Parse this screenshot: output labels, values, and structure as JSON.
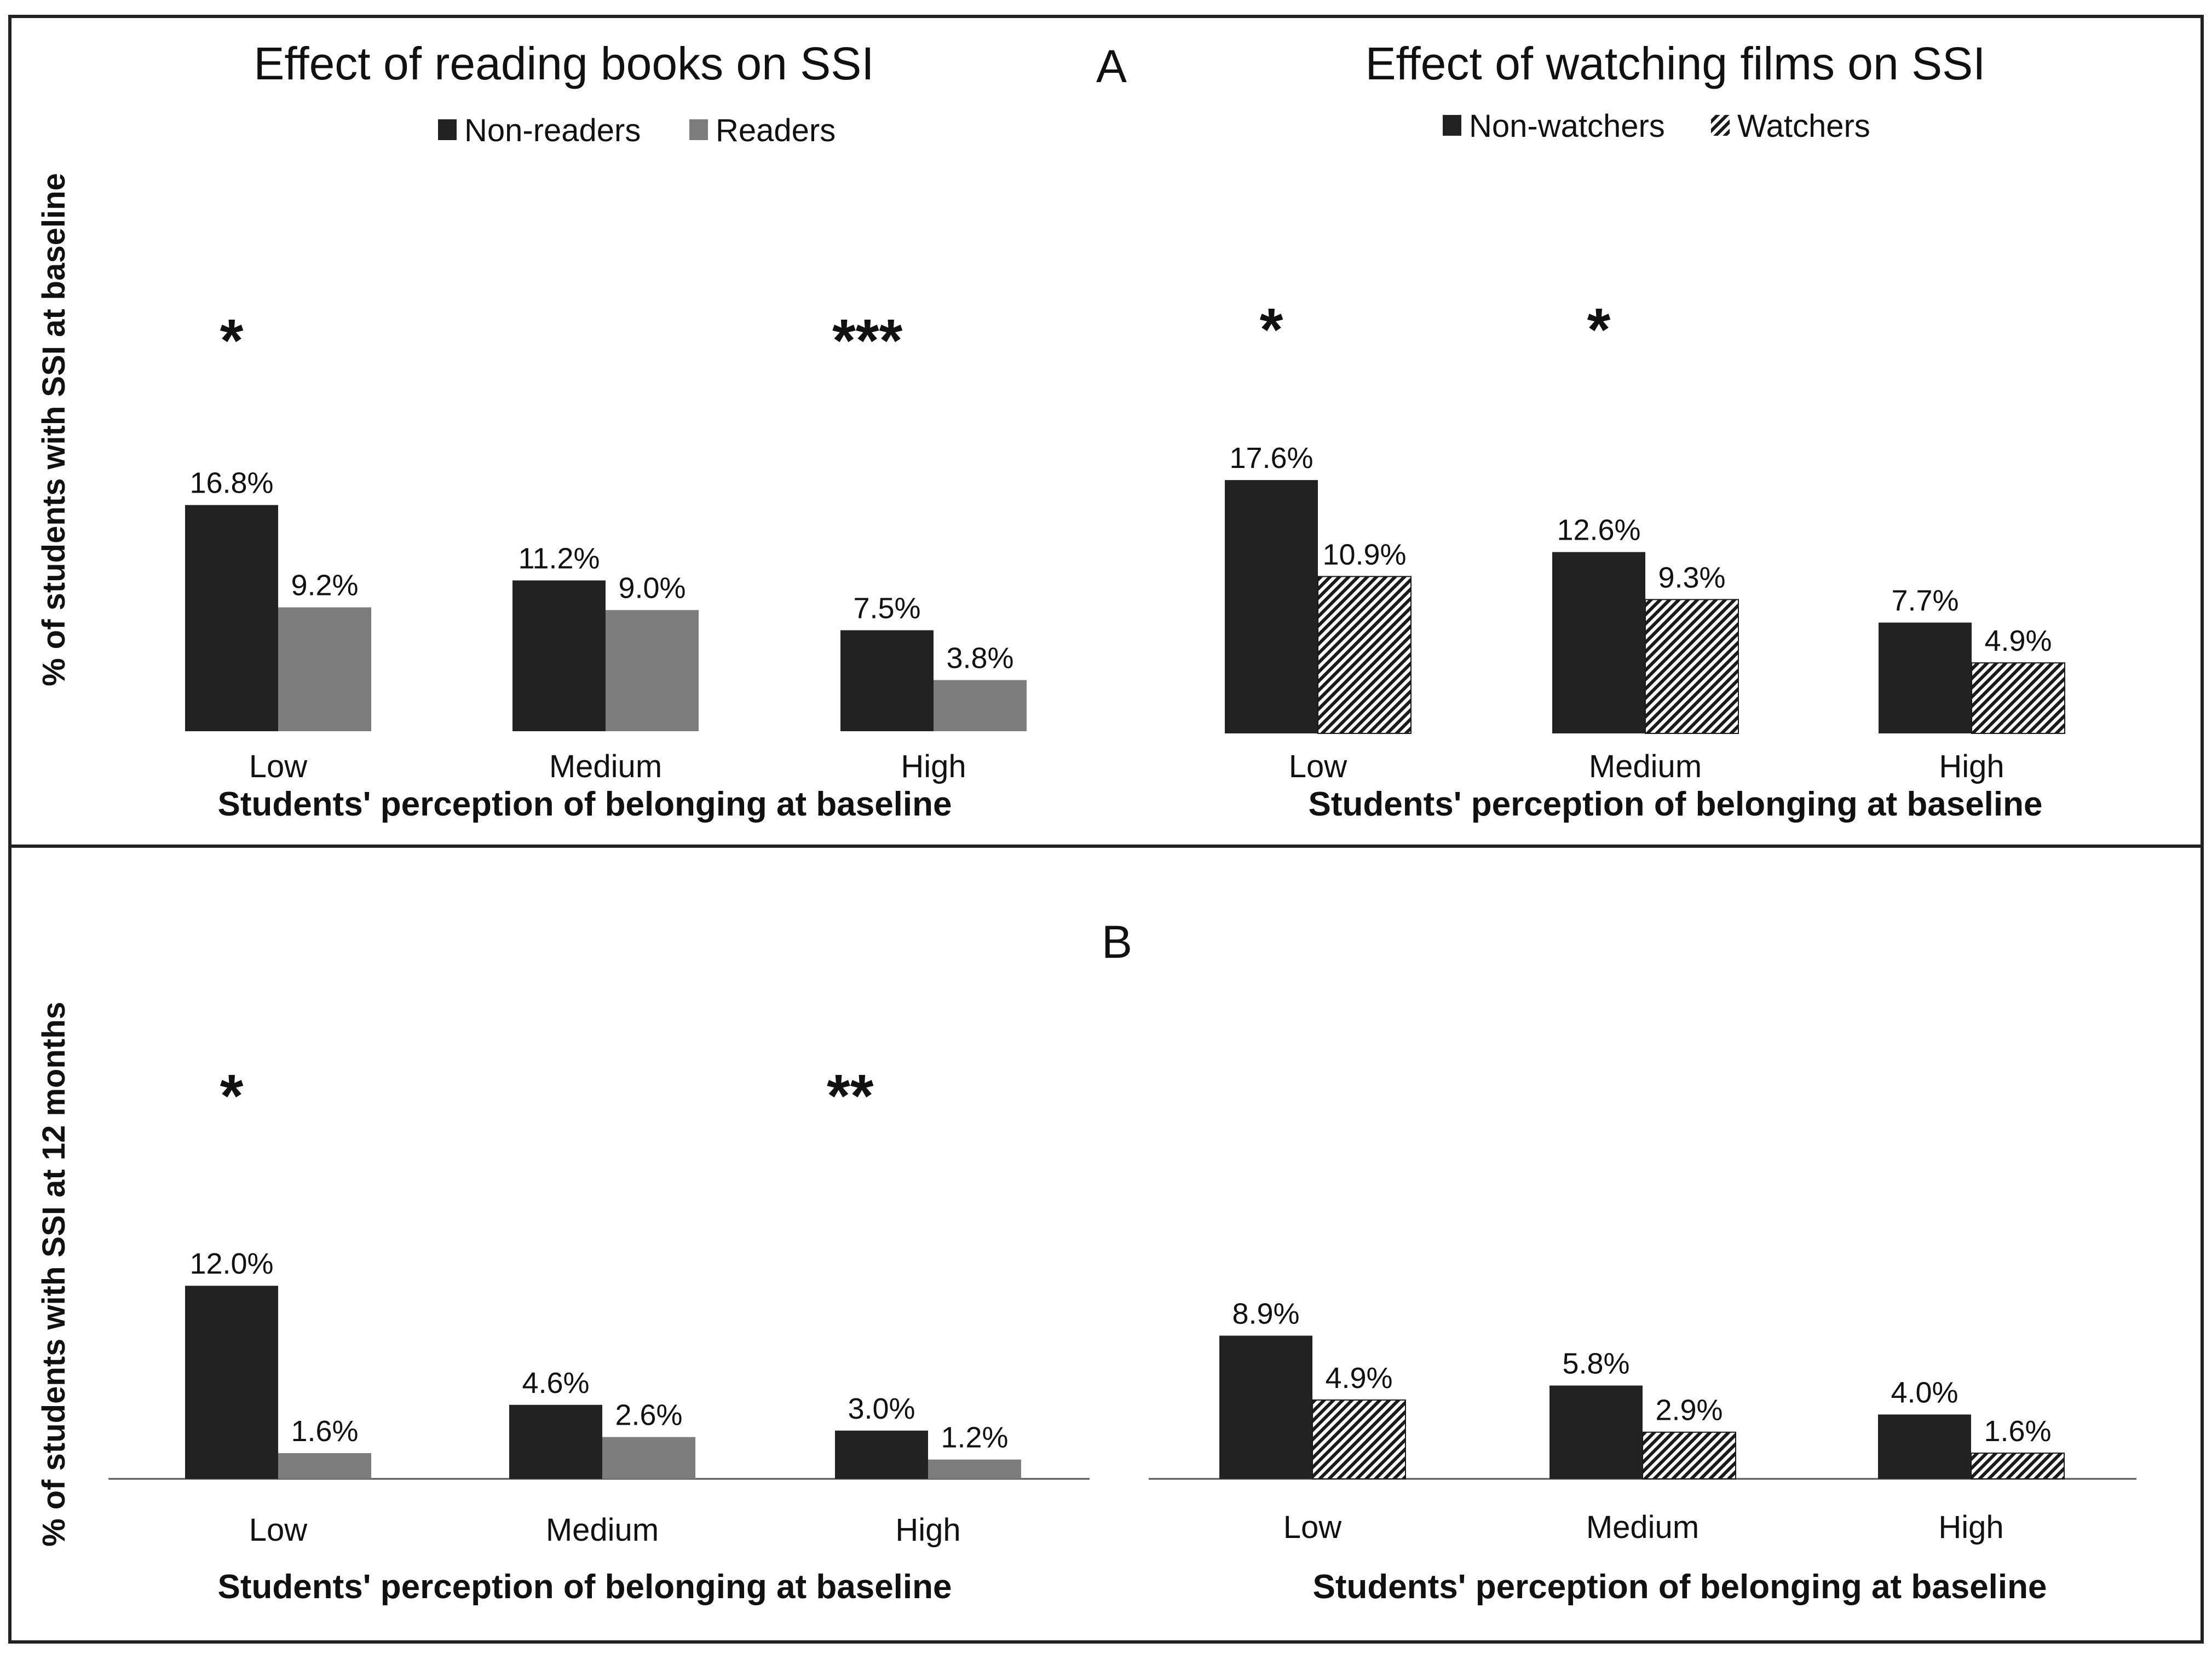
{
  "panels": {
    "a": {
      "label": "A"
    },
    "b": {
      "label": "B"
    }
  },
  "ylabels": {
    "a": "% of students with SSI at baseline",
    "b": "% of students with SSI at 12 months"
  },
  "colors": {
    "dark": "#222222",
    "grey": "#7d7d7d",
    "hatch_line": "#1a1a1a",
    "hatch_bg": "#ffffff",
    "axis": "#555555",
    "border": "#222222"
  },
  "chart_data": [
    {
      "id": "a-books",
      "panel": "A",
      "type": "bar",
      "title": "Effect of reading books on SSI",
      "xlabel": "Students' perception of belonging at baseline",
      "ylabel": "% of students with SSI at baseline",
      "categories": [
        "Low",
        "Medium",
        "High"
      ],
      "series": [
        {
          "name": "Non-readers",
          "style": "dark",
          "values": [
            16.8,
            11.2,
            7.5
          ],
          "labels": [
            "16.8%",
            "11.2%",
            "7.5%"
          ]
        },
        {
          "name": "Readers",
          "style": "grey",
          "values": [
            9.2,
            9.0,
            3.8
          ],
          "labels": [
            "9.2%",
            "9.0%",
            "3.8%"
          ]
        }
      ],
      "significance": [
        "*",
        "",
        "***"
      ],
      "legend": "top-center"
    },
    {
      "id": "a-films",
      "panel": "A",
      "type": "bar",
      "title": "Effect of watching films on SSI",
      "xlabel": "Students' perception of belonging at baseline",
      "ylabel": "% of students with SSI at baseline",
      "categories": [
        "Low",
        "Medium",
        "High"
      ],
      "series": [
        {
          "name": "Non-watchers",
          "style": "dark",
          "values": [
            17.6,
            12.6,
            7.7
          ],
          "labels": [
            "17.6%",
            "12.6%",
            "7.7%"
          ]
        },
        {
          "name": "Watchers",
          "style": "hatch",
          "values": [
            10.9,
            9.3,
            4.9
          ],
          "labels": [
            "10.9%",
            "9.3%",
            "4.9%"
          ]
        }
      ],
      "significance": [
        "*",
        "*",
        ""
      ],
      "legend": "top-center"
    },
    {
      "id": "b-books",
      "panel": "B",
      "type": "bar",
      "title": "",
      "xlabel": "Students' perception of belonging at baseline",
      "ylabel": "% of students with SSI at 12 months",
      "categories": [
        "Low",
        "Medium",
        "High"
      ],
      "series": [
        {
          "name": "Non-readers",
          "style": "dark",
          "values": [
            12.0,
            4.6,
            3.0
          ],
          "labels": [
            "12.0%",
            "4.6%",
            "3.0%"
          ]
        },
        {
          "name": "Readers",
          "style": "grey",
          "values": [
            1.6,
            2.6,
            1.2
          ],
          "labels": [
            "1.6%",
            "2.6%",
            "1.2%"
          ]
        }
      ],
      "significance": [
        "*",
        "",
        "**"
      ]
    },
    {
      "id": "b-films",
      "panel": "B",
      "type": "bar",
      "title": "",
      "xlabel": "Students' perception of belonging at baseline",
      "ylabel": "% of students with SSI at 12 months",
      "categories": [
        "Low",
        "Medium",
        "High"
      ],
      "series": [
        {
          "name": "Non-watchers",
          "style": "dark",
          "values": [
            8.9,
            5.8,
            4.0
          ],
          "labels": [
            "8.9%",
            "5.8%",
            "4.0%"
          ]
        },
        {
          "name": "Watchers",
          "style": "hatch",
          "values": [
            4.9,
            2.9,
            1.6
          ],
          "labels": [
            "4.9%",
            "2.9%",
            "1.6%"
          ]
        }
      ],
      "significance": [
        "",
        "",
        ""
      ]
    }
  ]
}
